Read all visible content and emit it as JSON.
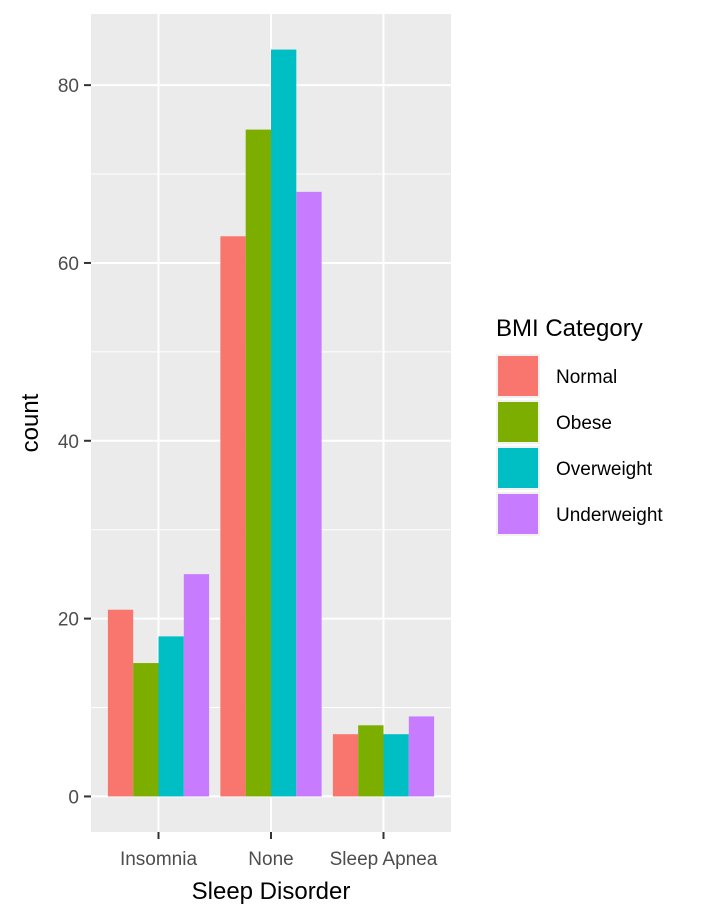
{
  "chart_data": {
    "type": "bar",
    "xlabel": "Sleep Disorder",
    "ylabel": "count",
    "categories": [
      "Insomnia",
      "None",
      "Sleep Apnea"
    ],
    "ylim": [
      -4,
      88
    ],
    "yticks": [
      0,
      20,
      40,
      60,
      80
    ],
    "grid": true,
    "legend_position": "right",
    "legend_title": "BMI Category",
    "series": [
      {
        "name": "Normal",
        "color": "#F8766D",
        "values": [
          21,
          63,
          7
        ]
      },
      {
        "name": "Obese",
        "color": "#7CAE00",
        "values": [
          15,
          75,
          8
        ]
      },
      {
        "name": "Overweight",
        "color": "#00BFC4",
        "values": [
          18,
          84,
          7
        ]
      },
      {
        "name": "Underweight",
        "color": "#C77CFF",
        "values": [
          25,
          68,
          9
        ]
      }
    ],
    "panel_background": "#EBEBEB",
    "grid_color": "#FFFFFF"
  }
}
